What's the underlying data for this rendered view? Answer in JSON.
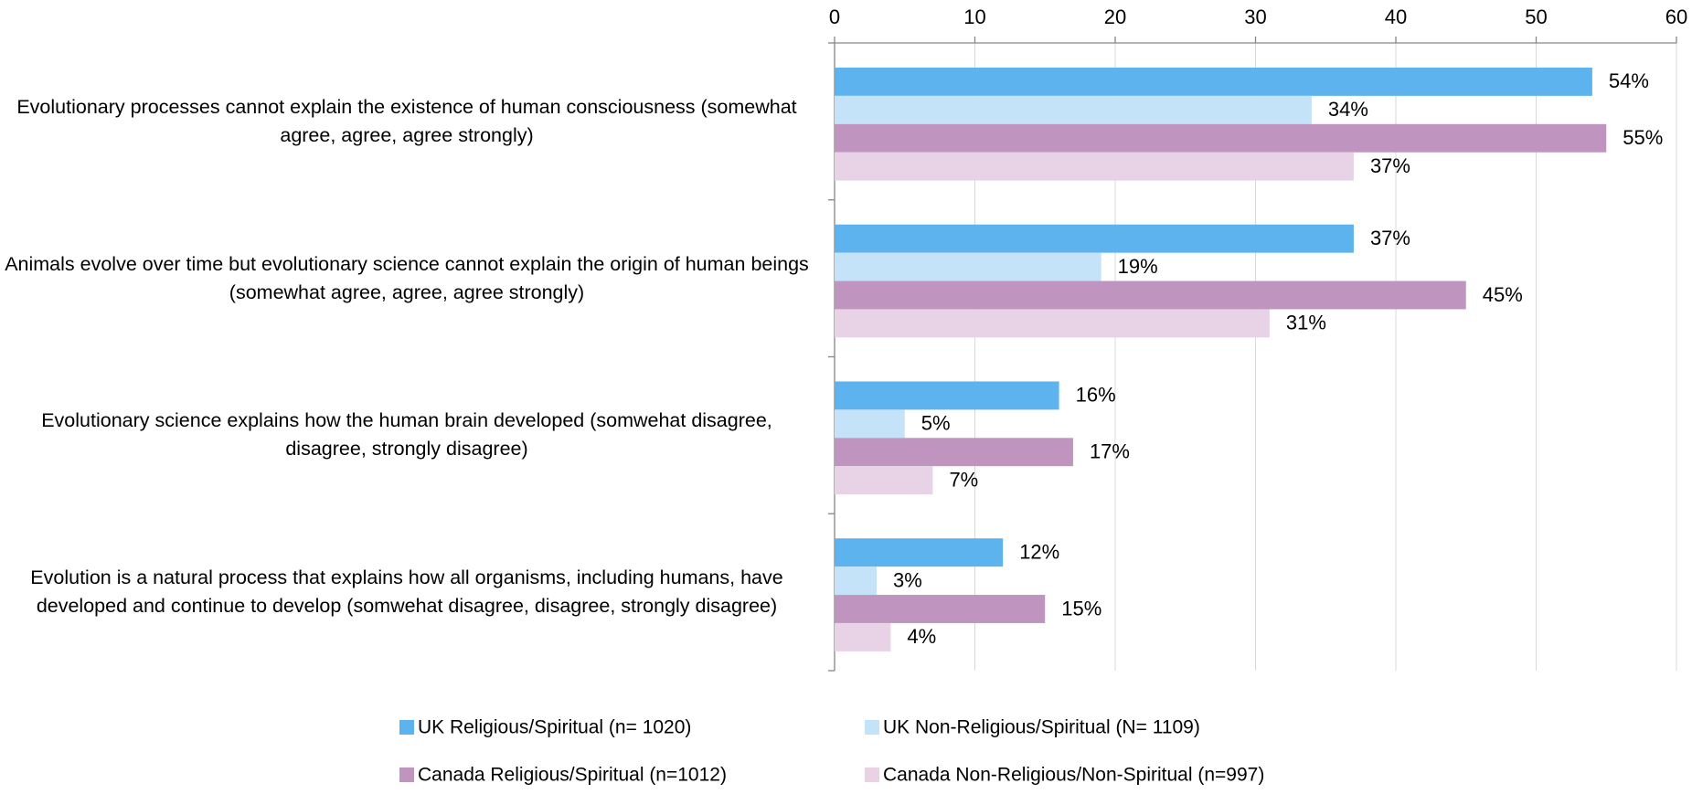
{
  "chart_data": {
    "type": "hbar",
    "categories": [
      "Evolutionary processes cannot explain the existence of human consciousness (somewhat agree, agree, agree strongly)",
      "Animals evolve over time but evolutionary science cannot explain the origin of human beings (somewhat agree, agree, agree strongly)",
      "Evolutionary science explains how the human brain developed (somwehat disagree, disagree, strongly disagree)",
      "Evolution is a natural process that explains how all organisms, including humans, have developed and continue to develop (somwehat disagree, disagree, strongly disagree)"
    ],
    "series": [
      {
        "name": "UK  Religious/Spiritual (n= 1020)",
        "color": "#5db3ee",
        "values": [
          54,
          37,
          16,
          12
        ],
        "value_labels": [
          "54%",
          "37%",
          "16%",
          "12%"
        ]
      },
      {
        "name": "UK  Non-Religious/Spiritual (N= 1109)",
        "color": "#c4e3f8",
        "values": [
          34,
          19,
          5,
          3
        ],
        "value_labels": [
          "34%",
          "19%",
          "5%",
          "3%"
        ]
      },
      {
        "name": "Canada Religious/Spiritual (n=1012)",
        "color": "#bf95bf",
        "values": [
          55,
          45,
          17,
          15
        ],
        "value_labels": [
          "55%",
          "45%",
          "17%",
          "15%"
        ]
      },
      {
        "name": "Canada Non-Religious/Non-Spiritual (n=997)",
        "color": "#e8d3e6",
        "values": [
          37,
          31,
          7,
          4
        ],
        "value_labels": [
          "37%",
          "31%",
          "7%",
          "4%"
        ]
      }
    ],
    "xlim": [
      0,
      60
    ],
    "xticks": [
      0,
      10,
      20,
      30,
      40,
      50,
      60
    ],
    "grid": true
  }
}
